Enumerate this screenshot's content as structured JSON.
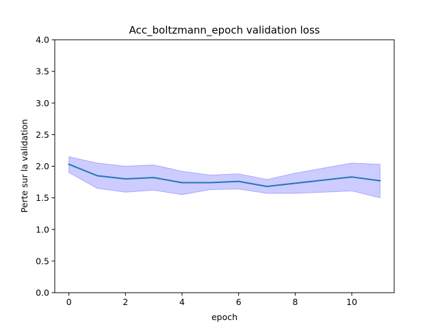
{
  "chart_data": {
    "type": "line",
    "title": "Acc_boltzmann_epoch validation loss",
    "xlabel": "epoch",
    "ylabel": "Perte sur la validation",
    "xlim": [
      -0.5,
      11.5
    ],
    "ylim": [
      0,
      4.0
    ],
    "x_ticks": [
      0,
      2,
      4,
      6,
      8,
      10
    ],
    "y_ticks": [
      0.0,
      0.5,
      1.0,
      1.5,
      2.0,
      2.5,
      3.0,
      3.5,
      4.0
    ],
    "grid": false,
    "legend": "none",
    "series": [
      {
        "x": [
          0,
          1,
          2,
          3,
          4,
          5,
          6,
          7,
          8,
          9,
          10,
          11
        ],
        "values": [
          2.03,
          1.85,
          1.8,
          1.82,
          1.74,
          1.74,
          1.76,
          1.68,
          1.73,
          1.78,
          1.83,
          1.77
        ],
        "upper": [
          2.15,
          2.05,
          2.0,
          2.02,
          1.92,
          1.86,
          1.88,
          1.79,
          1.89,
          1.97,
          2.05,
          2.03
        ],
        "lower": [
          1.9,
          1.65,
          1.59,
          1.62,
          1.55,
          1.63,
          1.64,
          1.57,
          1.57,
          1.59,
          1.61,
          1.5
        ],
        "line_color": "#1f77b4",
        "band_color": "#0000ff"
      }
    ]
  }
}
